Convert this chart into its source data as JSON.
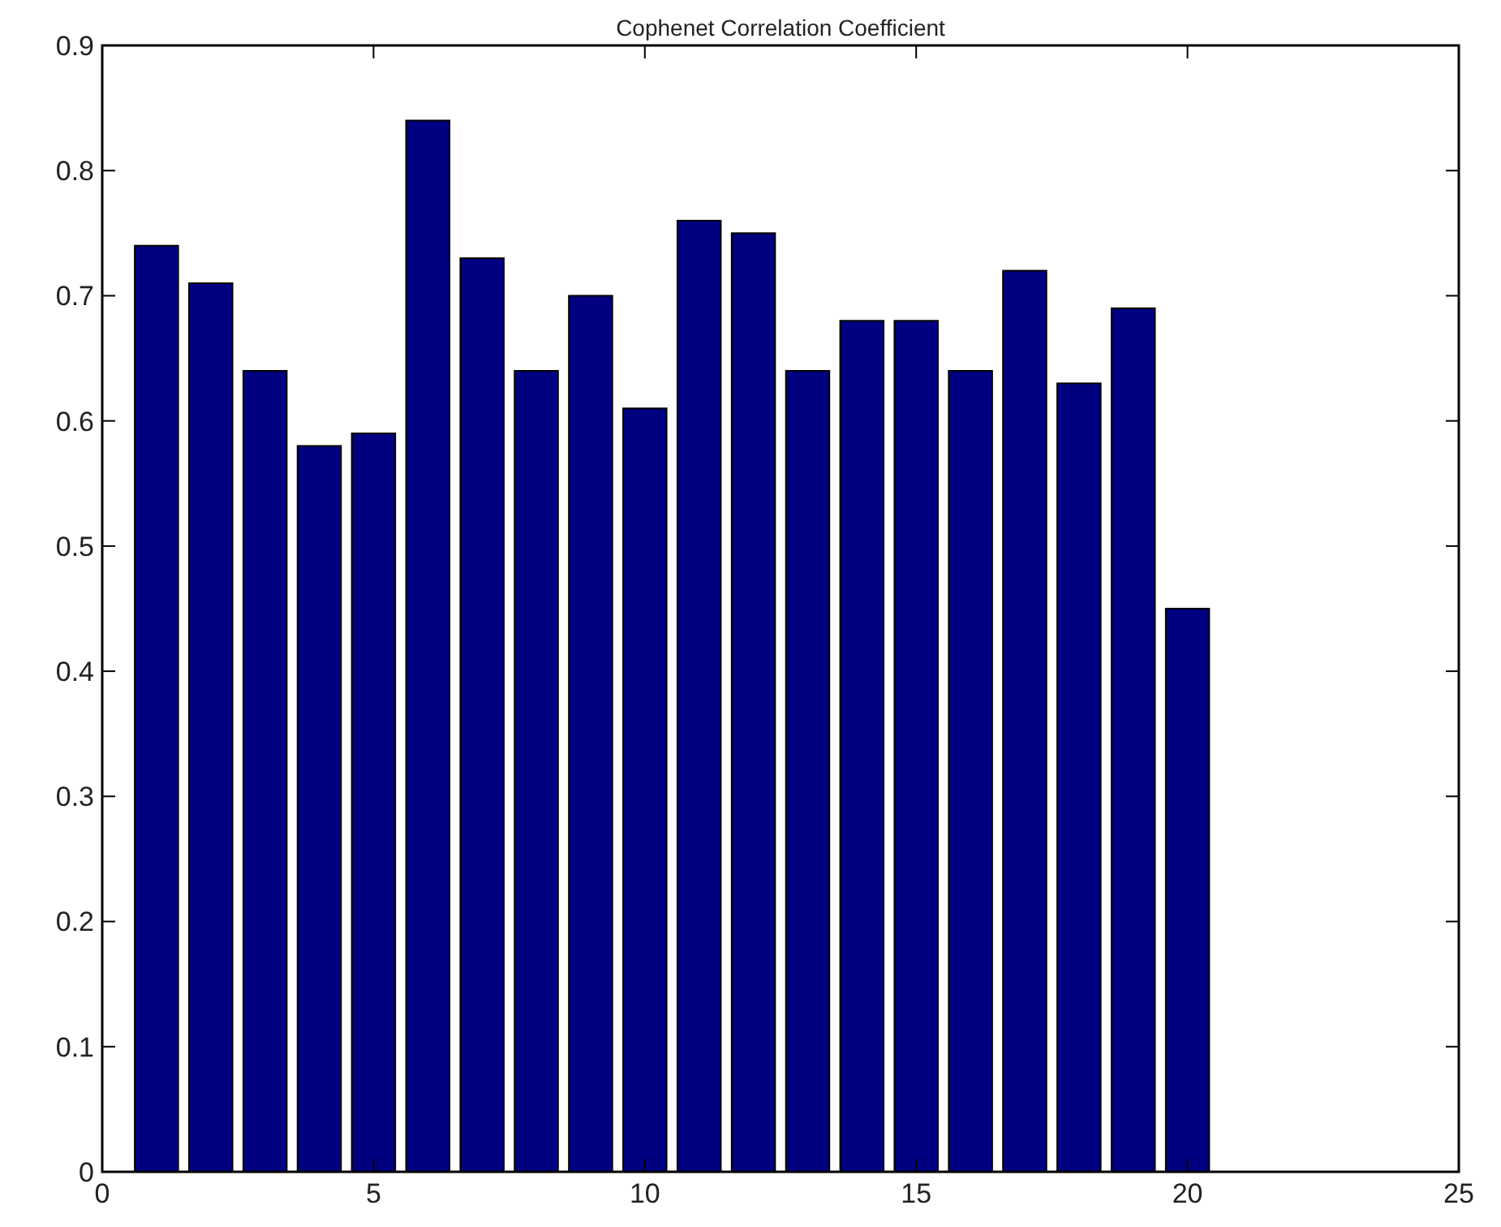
{
  "chart_data": {
    "type": "bar",
    "title": "Cophenet Correlation Coefficient",
    "x": [
      1,
      2,
      3,
      4,
      5,
      6,
      7,
      8,
      9,
      10,
      11,
      12,
      13,
      14,
      15,
      16,
      17,
      18,
      19,
      20
    ],
    "values": [
      0.74,
      0.71,
      0.64,
      0.58,
      0.59,
      0.84,
      0.73,
      0.64,
      0.7,
      0.61,
      0.76,
      0.75,
      0.64,
      0.68,
      0.68,
      0.64,
      0.72,
      0.63,
      0.69,
      0.45
    ],
    "color": "#000080",
    "xlim": [
      0,
      25
    ],
    "xticks": [
      0,
      5,
      10,
      15,
      20,
      25
    ],
    "ylim": [
      0,
      0.9
    ],
    "yticks": [
      0,
      0.1,
      0.2,
      0.3,
      0.4,
      0.5,
      0.6,
      0.7,
      0.8,
      0.9
    ],
    "grid": false
  }
}
